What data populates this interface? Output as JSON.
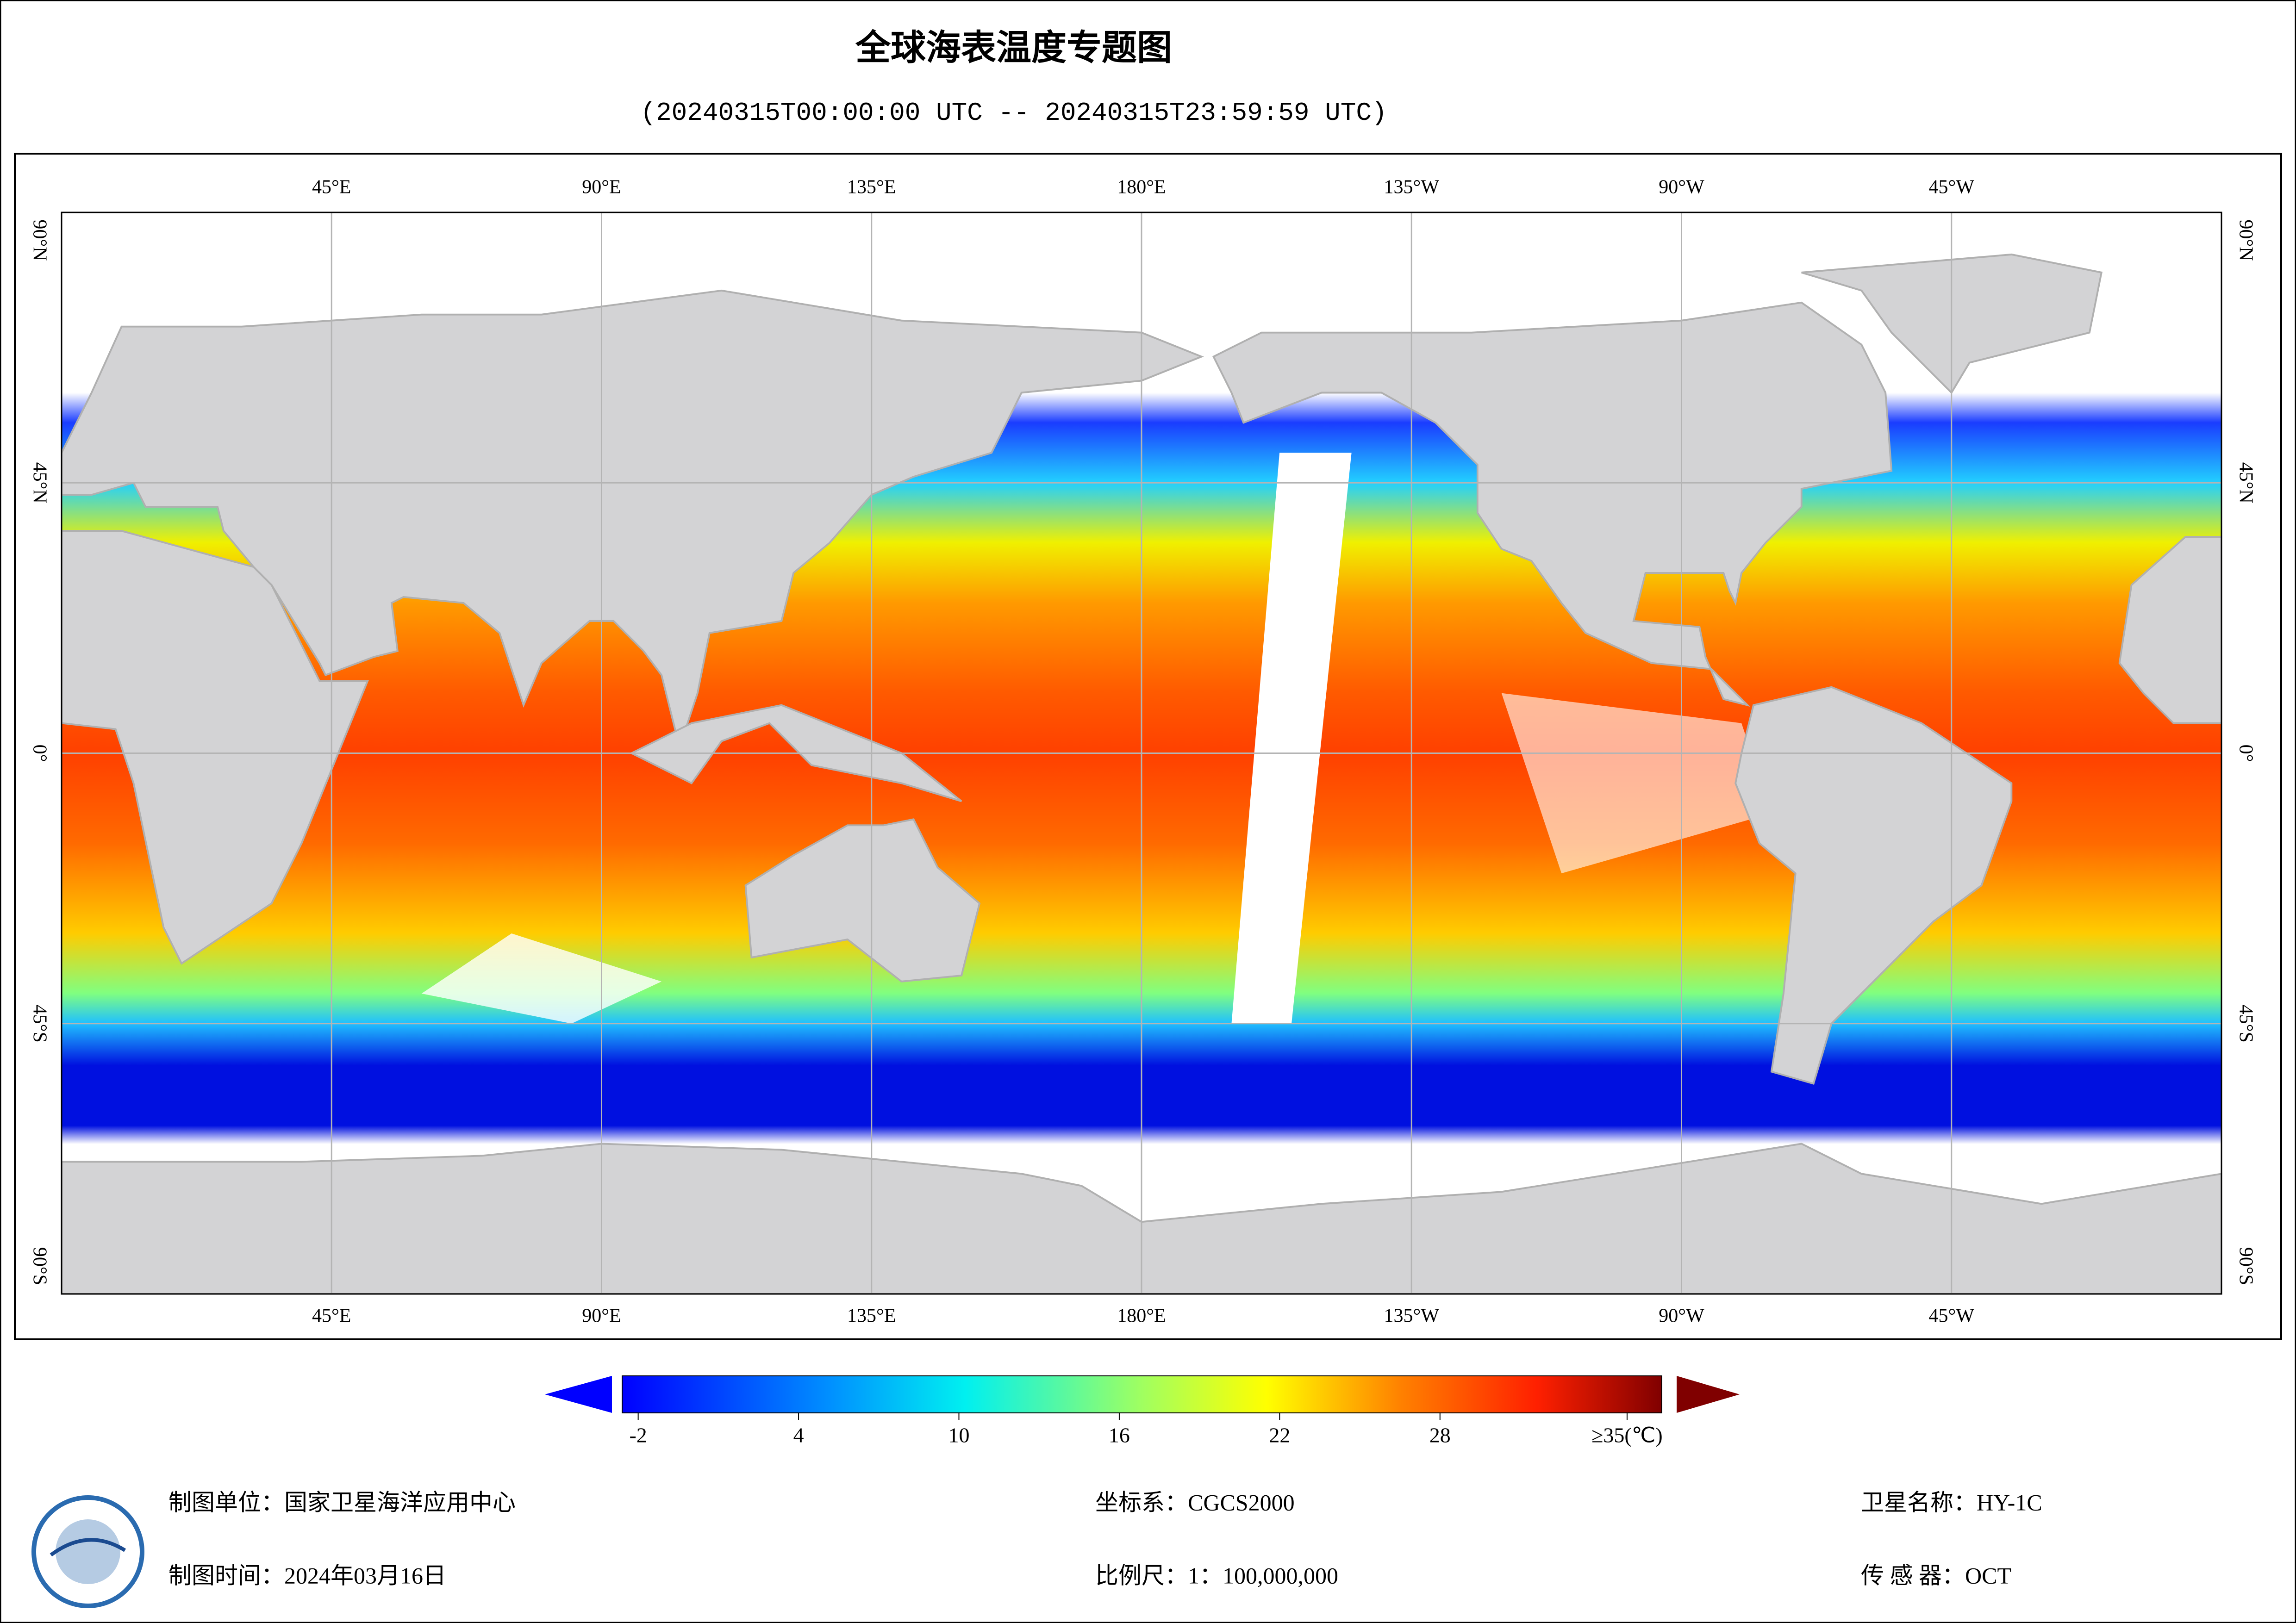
{
  "title": "全球海表温度专题图",
  "subtitle": "(20240315T00:00:00 UTC -- 20240315T23:59:59 UTC)",
  "map": {
    "xlim": [
      0,
      360
    ],
    "ylim": [
      -90,
      90
    ],
    "lon_ticks": [
      {
        "value": 45,
        "label": "45°E"
      },
      {
        "value": 90,
        "label": "90°E"
      },
      {
        "value": 135,
        "label": "135°E"
      },
      {
        "value": 180,
        "label": "180°E"
      },
      {
        "value": 225,
        "label": "135°W"
      },
      {
        "value": 270,
        "label": "90°W"
      },
      {
        "value": 315,
        "label": "45°W"
      }
    ],
    "lat_ticks": [
      {
        "value": 90,
        "label": "90°N"
      },
      {
        "value": 45,
        "label": "45°N"
      },
      {
        "value": 0,
        "label": "0°"
      },
      {
        "value": -45,
        "label": "45°S"
      },
      {
        "value": -90,
        "label": "90°S"
      }
    ]
  },
  "colorbar": {
    "lim": [
      -2.6,
      36.3
    ],
    "ticks": [
      -2,
      4,
      10,
      16,
      22,
      28,
      {
        "value": 35,
        "label": "≥35(℃)"
      }
    ]
  },
  "footer": {
    "unit": "制图单位：国家卫星海洋应用中心",
    "time": "制图时间：2024年03月16日",
    "crs": "坐标系：CGCS2000",
    "scale": "比例尺：1：100,000,000",
    "satellite": "卫星名称：HY-1C",
    "sensor": "传 感 器：OCT"
  }
}
